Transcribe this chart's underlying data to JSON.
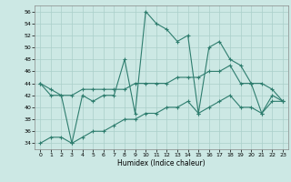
{
  "xlabel": "Humidex (Indice chaleur)",
  "x": [
    0,
    1,
    2,
    3,
    4,
    5,
    6,
    7,
    8,
    9,
    10,
    11,
    12,
    13,
    14,
    15,
    16,
    17,
    18,
    19,
    20,
    21,
    22,
    23
  ],
  "series1": [
    44,
    43,
    42,
    34,
    42,
    41,
    42,
    42,
    48,
    39,
    56,
    54,
    53,
    51,
    52,
    39,
    50,
    51,
    48,
    47,
    44,
    39,
    42,
    41
  ],
  "series2": [
    44,
    42,
    42,
    42,
    43,
    43,
    43,
    43,
    43,
    44,
    44,
    44,
    44,
    45,
    45,
    45,
    46,
    46,
    47,
    44,
    44,
    44,
    43,
    41
  ],
  "series3": [
    34,
    35,
    35,
    34,
    35,
    36,
    36,
    37,
    38,
    38,
    39,
    39,
    40,
    40,
    41,
    39,
    40,
    41,
    42,
    40,
    40,
    39,
    41,
    41
  ],
  "ylim": [
    33,
    57
  ],
  "yticks": [
    34,
    36,
    38,
    40,
    42,
    44,
    46,
    48,
    50,
    52,
    54,
    56
  ],
  "line_color": "#2e7d6e",
  "bg_color": "#cce8e4",
  "grid_color": "#aacfca"
}
